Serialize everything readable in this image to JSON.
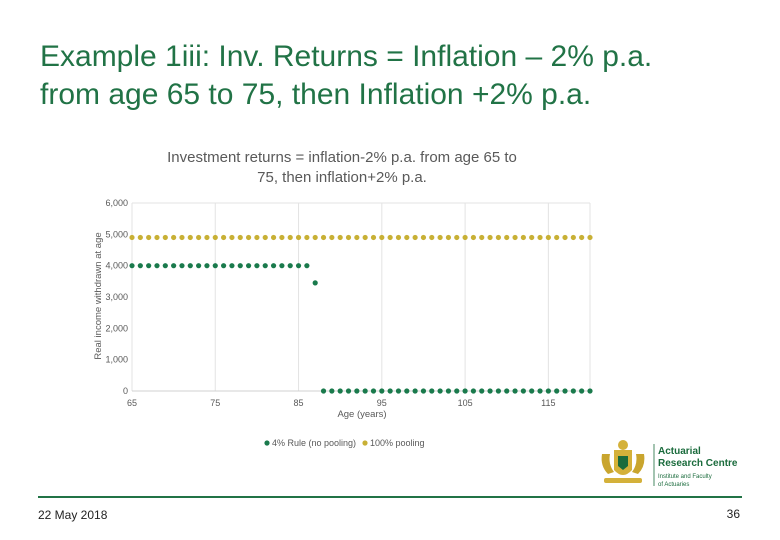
{
  "slide": {
    "title_line1": "Example 1iii: Inv. Returns = Inflation – 2% p.a.",
    "title_line2": "from age 65 to 75, then Inflation +2% p.a.",
    "date": "22 May 2018",
    "page_number": "36"
  },
  "logo": {
    "line1": "Actuarial",
    "line2": "Research Centre",
    "sub1": "Institute and Faculty",
    "sub2": "of Actuaries"
  },
  "chart_data": {
    "type": "scatter",
    "title_line1": "Investment returns = inflation-2% p.a. from age 65 to",
    "title_line2": "75, then inflation+2% p.a.",
    "xlabel": "Age (years)",
    "ylabel": "Real income withdrawn at age",
    "xlim": [
      65,
      120
    ],
    "ylim": [
      0,
      6000
    ],
    "xticks": [
      65,
      75,
      85,
      95,
      105,
      115
    ],
    "xtick_labels": [
      "65",
      "75",
      "85",
      "95",
      "105",
      "115"
    ],
    "yticks": [
      0,
      1000,
      2000,
      3000,
      4000,
      5000,
      6000
    ],
    "ytick_labels": [
      "0",
      "1,000",
      "2,000",
      "3,000",
      "4,000",
      "5,000",
      "6,000"
    ],
    "grid": "vertical",
    "legend_position": "bottom",
    "series": [
      {
        "name": "4% Rule (no pooling)",
        "color": "#1a7a4c",
        "x": [
          65,
          66,
          67,
          68,
          69,
          70,
          71,
          72,
          73,
          74,
          75,
          76,
          77,
          78,
          79,
          80,
          81,
          82,
          83,
          84,
          85,
          86,
          87,
          88,
          89,
          90,
          91,
          92,
          93,
          94,
          95,
          96,
          97,
          98,
          99,
          100,
          101,
          102,
          103,
          104,
          105,
          106,
          107,
          108,
          109,
          110,
          111,
          112,
          113,
          114,
          115,
          116,
          117,
          118,
          119,
          120
        ],
        "y": [
          4000,
          4000,
          4000,
          4000,
          4000,
          4000,
          4000,
          4000,
          4000,
          4000,
          4000,
          4000,
          4000,
          4000,
          4000,
          4000,
          4000,
          4000,
          4000,
          4000,
          4000,
          4000,
          3450,
          0,
          0,
          0,
          0,
          0,
          0,
          0,
          0,
          0,
          0,
          0,
          0,
          0,
          0,
          0,
          0,
          0,
          0,
          0,
          0,
          0,
          0,
          0,
          0,
          0,
          0,
          0,
          0,
          0,
          0,
          0,
          0,
          0
        ]
      },
      {
        "name": "100% pooling",
        "color": "#c8b035",
        "x": [
          65,
          66,
          67,
          68,
          69,
          70,
          71,
          72,
          73,
          74,
          75,
          76,
          77,
          78,
          79,
          80,
          81,
          82,
          83,
          84,
          85,
          86,
          87,
          88,
          89,
          90,
          91,
          92,
          93,
          94,
          95,
          96,
          97,
          98,
          99,
          100,
          101,
          102,
          103,
          104,
          105,
          106,
          107,
          108,
          109,
          110,
          111,
          112,
          113,
          114,
          115,
          116,
          117,
          118,
          119,
          120
        ],
        "y": [
          4900,
          4900,
          4900,
          4900,
          4900,
          4900,
          4900,
          4900,
          4900,
          4900,
          4900,
          4900,
          4900,
          4900,
          4900,
          4900,
          4900,
          4900,
          4900,
          4900,
          4900,
          4900,
          4900,
          4900,
          4900,
          4900,
          4900,
          4900,
          4900,
          4900,
          4900,
          4900,
          4900,
          4900,
          4900,
          4900,
          4900,
          4900,
          4900,
          4900,
          4900,
          4900,
          4900,
          4900,
          4900,
          4900,
          4900,
          4900,
          4900,
          4900,
          4900,
          4900,
          4900,
          4900,
          4900,
          4900
        ]
      }
    ]
  }
}
